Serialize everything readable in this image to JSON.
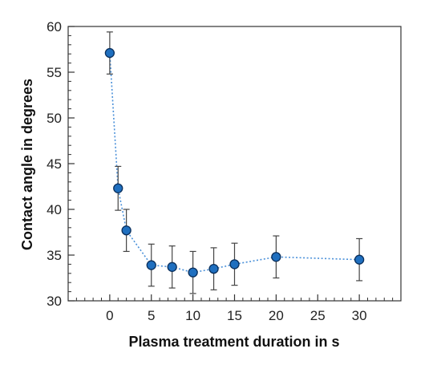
{
  "chart_data": {
    "type": "scatter",
    "title": "",
    "xlabel": "Plasma treatment duration in s",
    "ylabel": "Contact angle in degrees",
    "xlim": [
      -5,
      35
    ],
    "ylim": [
      30,
      60
    ],
    "x_ticks": [
      0,
      5,
      10,
      15,
      20,
      25,
      30
    ],
    "y_ticks": [
      30,
      35,
      40,
      45,
      50,
      55,
      60
    ],
    "x_minor_step": 1,
    "y_minor_step": 1,
    "grid": false,
    "legend": "none",
    "connect_points": "dotted-line",
    "error_bars": true,
    "series": [
      {
        "x": [
          0,
          1,
          2,
          5,
          7.5,
          10,
          12.5,
          15,
          20,
          30
        ],
        "y": [
          57.1,
          42.3,
          37.7,
          33.9,
          33.7,
          33.1,
          33.5,
          34.0,
          34.8,
          34.5
        ],
        "error": [
          2.3,
          2.4,
          2.3,
          2.3,
          2.3,
          2.3,
          2.3,
          2.3,
          2.3,
          2.3
        ],
        "marker_color": "#1f6fbf",
        "line_color": "#4a90d9"
      }
    ]
  }
}
